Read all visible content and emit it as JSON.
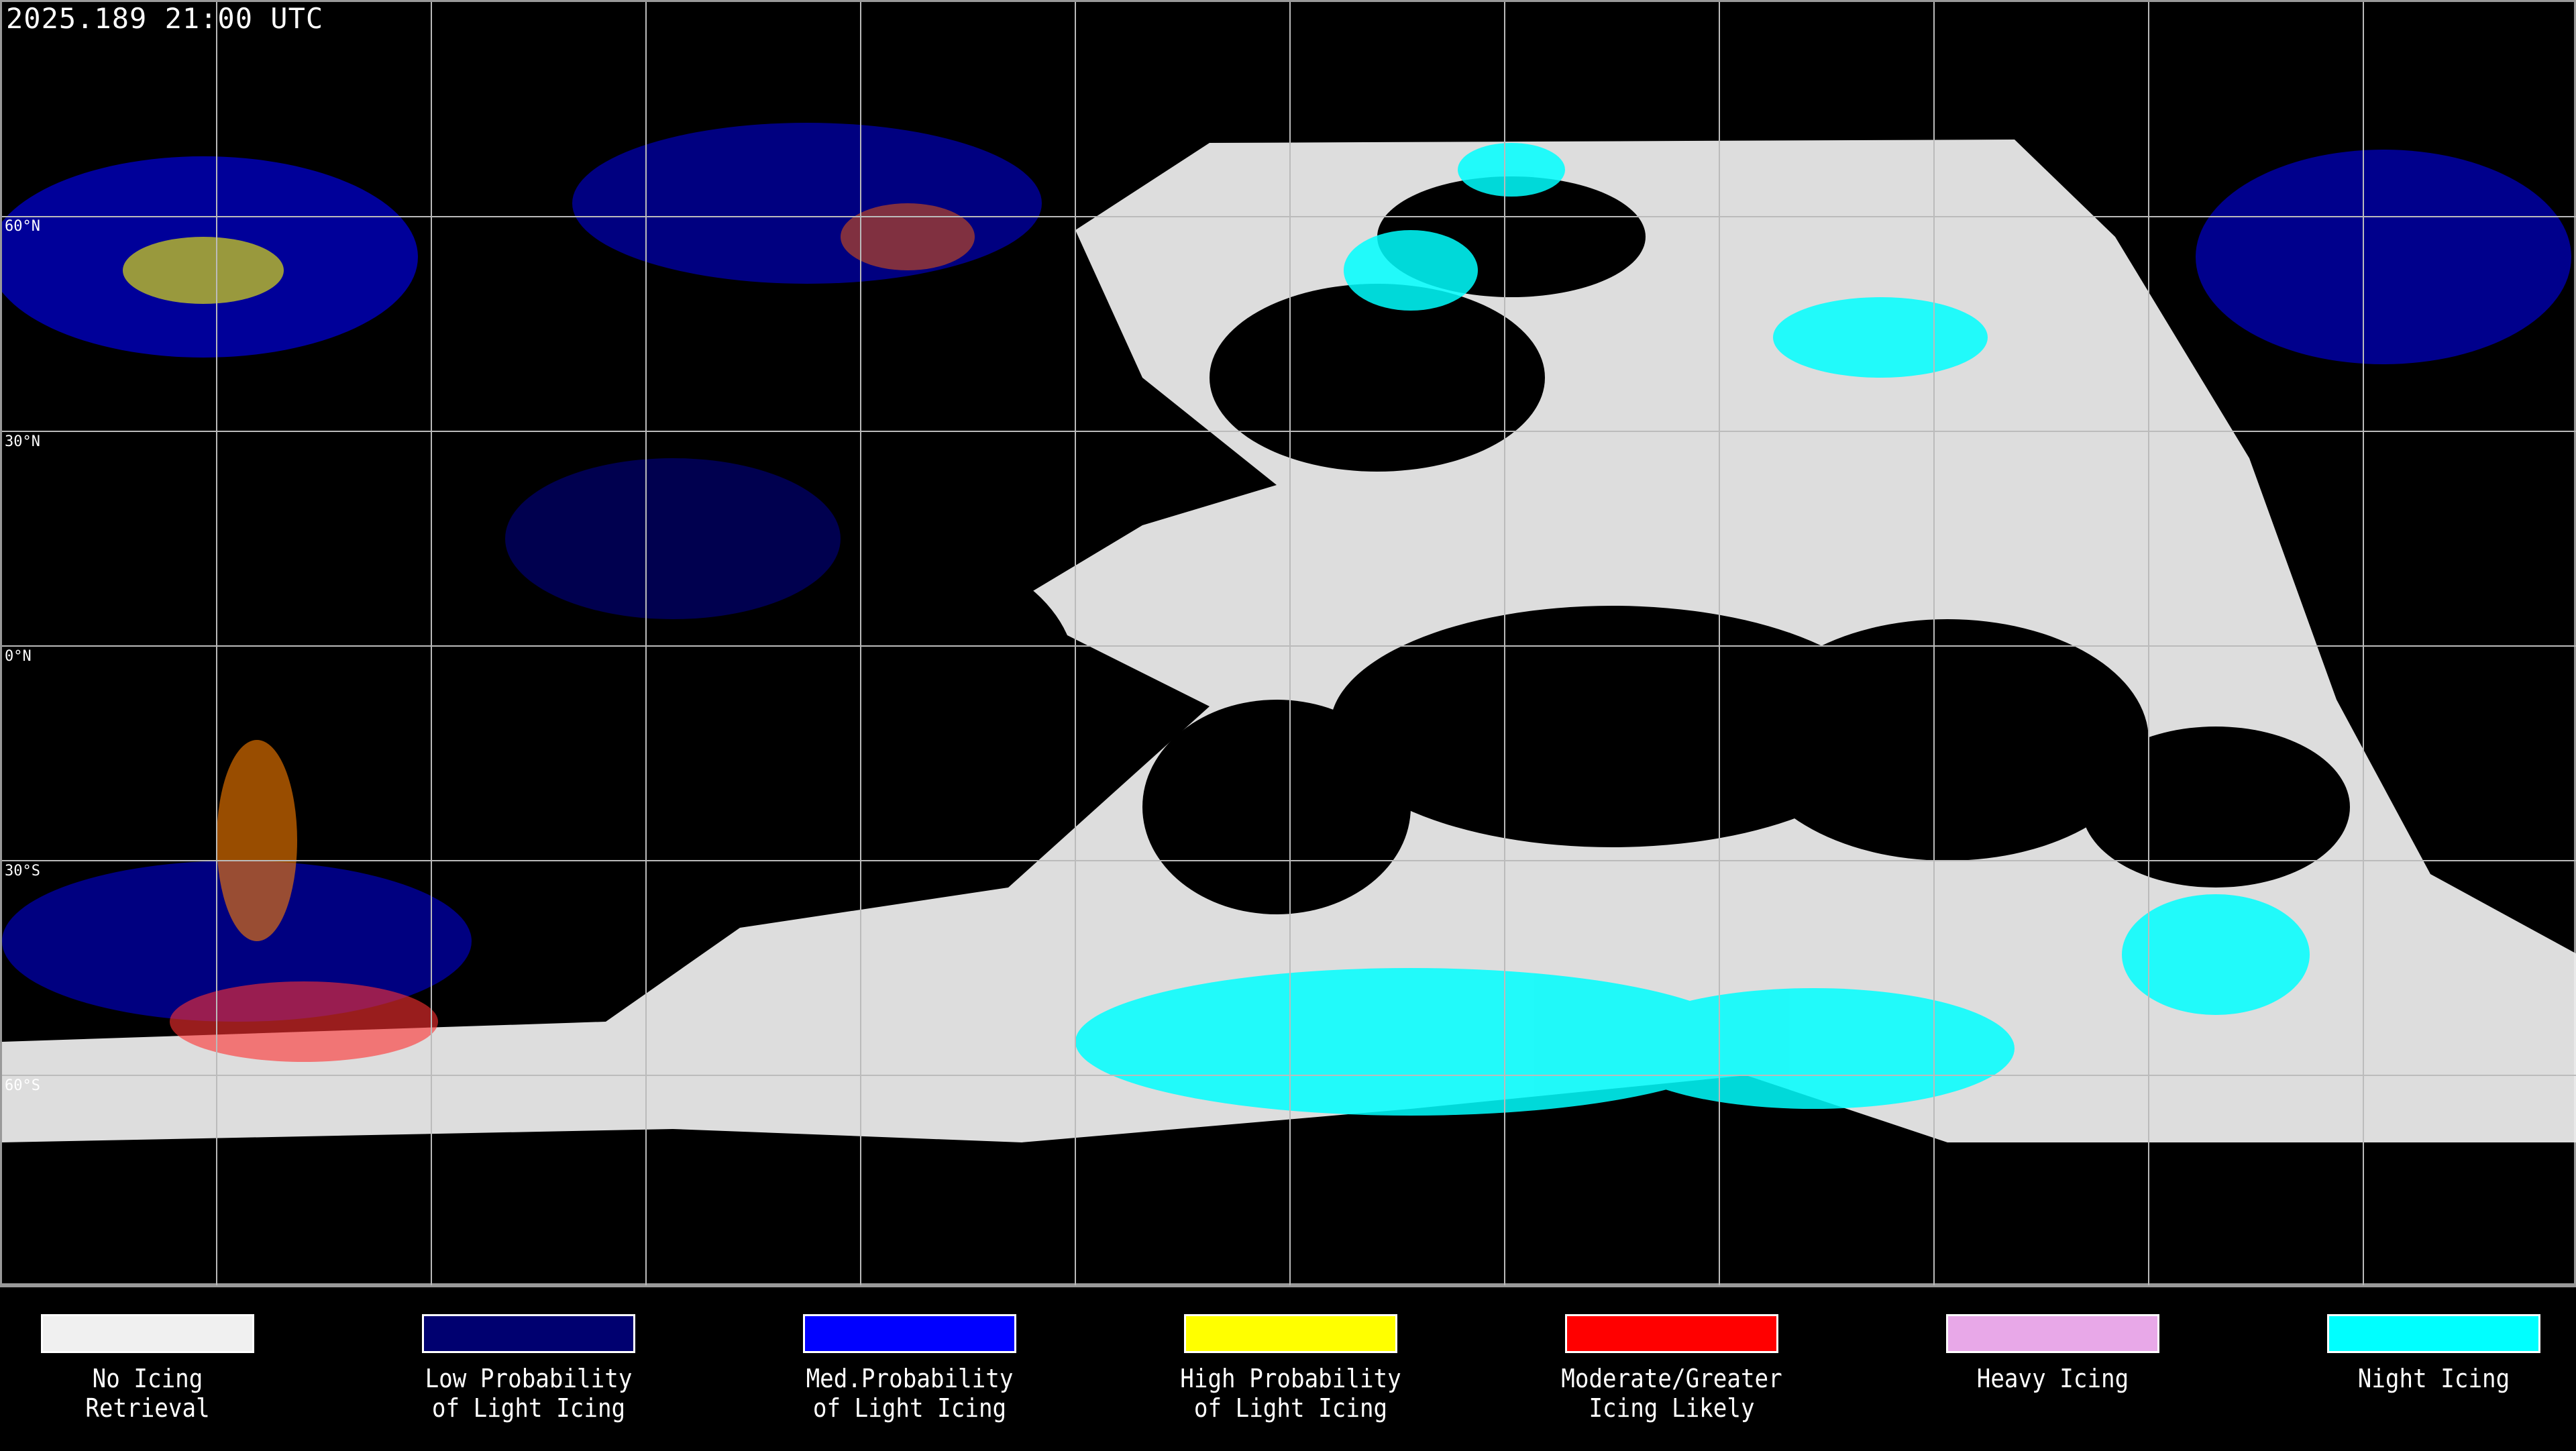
{
  "header": {
    "timestamp": "2025.189 21:00 UTC"
  },
  "map": {
    "latitude_labels": [
      "60°N",
      "30°N",
      "0°N",
      "30°S",
      "60°S"
    ]
  },
  "legend": [
    {
      "line1": "No Icing",
      "line2": "Retrieval",
      "color": "#f0f0f0"
    },
    {
      "line1": "Low Probability",
      "line2": "of Light Icing",
      "color": "#000070"
    },
    {
      "line1": "Med.Probability",
      "line2": "of Light Icing",
      "color": "#0000ff"
    },
    {
      "line1": "High Probability",
      "line2": "of Light Icing",
      "color": "#ffff00"
    },
    {
      "line1": "Moderate/Greater",
      "line2": "Icing Likely",
      "color": "#ff0000"
    },
    {
      "line1": "Heavy Icing",
      "line2": "",
      "color": "#e8a8e8"
    },
    {
      "line1": "Night Icing",
      "line2": "",
      "color": "#00ffff"
    }
  ]
}
